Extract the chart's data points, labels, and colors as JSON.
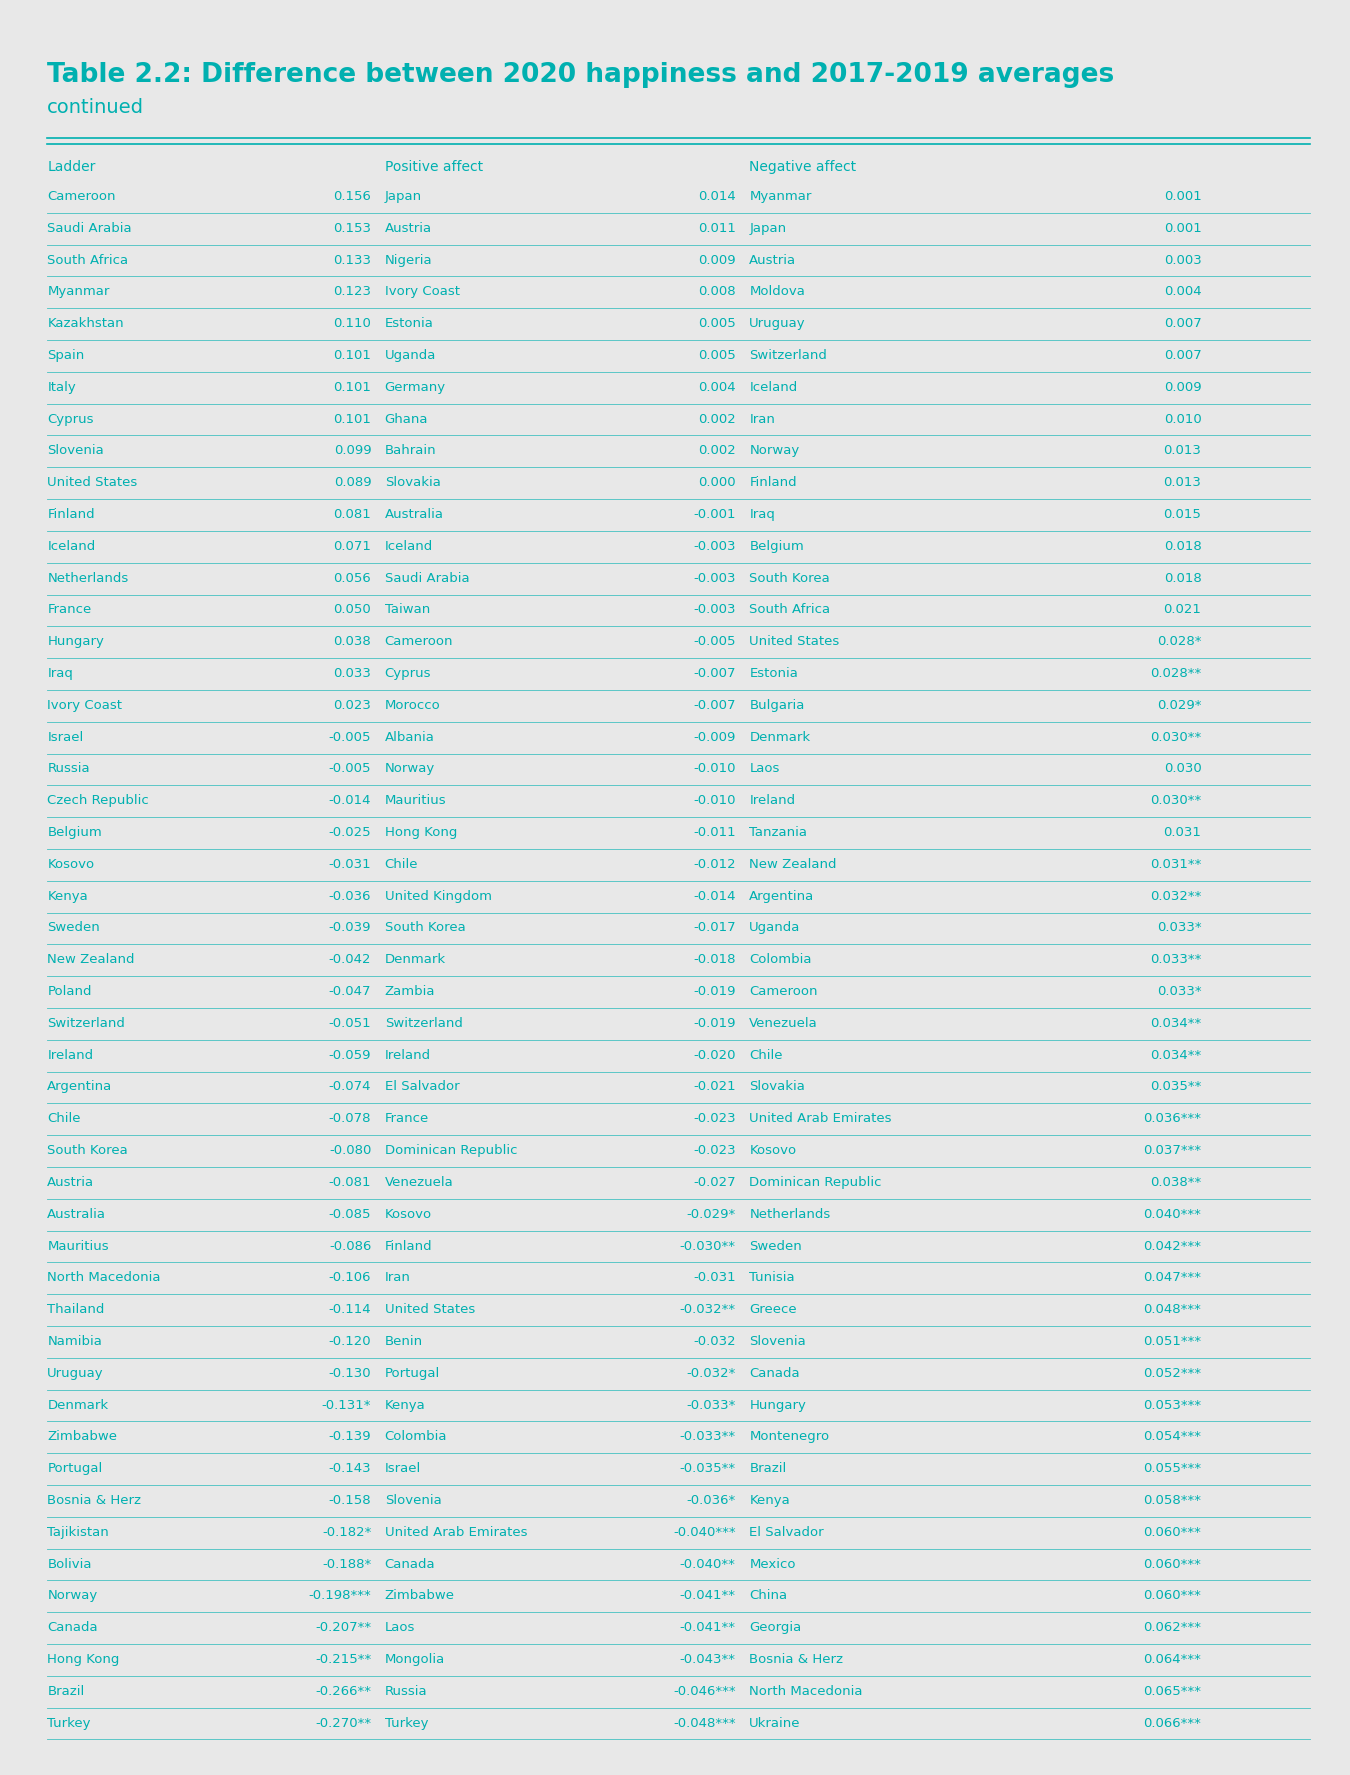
{
  "title": "Table 2.2: Difference between 2020 happiness and 2017-2019 averages",
  "subtitle": "continued",
  "bg_color": "#e8e8e8",
  "header_color": "#00b0b0",
  "text_color": "#00b0b0",
  "line_color": "#00b0b0",
  "col_headers": [
    "Ladder",
    "",
    "Positive affect",
    "",
    "Negative affect",
    ""
  ],
  "rows": [
    [
      "Cameroon",
      "0.156",
      "Japan",
      "0.014",
      "Myanmar",
      "0.001"
    ],
    [
      "Saudi Arabia",
      "0.153",
      "Austria",
      "0.011",
      "Japan",
      "0.001"
    ],
    [
      "South Africa",
      "0.133",
      "Nigeria",
      "0.009",
      "Austria",
      "0.003"
    ],
    [
      "Myanmar",
      "0.123",
      "Ivory Coast",
      "0.008",
      "Moldova",
      "0.004"
    ],
    [
      "Kazakhstan",
      "0.110",
      "Estonia",
      "0.005",
      "Uruguay",
      "0.007"
    ],
    [
      "Spain",
      "0.101",
      "Uganda",
      "0.005",
      "Switzerland",
      "0.007"
    ],
    [
      "Italy",
      "0.101",
      "Germany",
      "0.004",
      "Iceland",
      "0.009"
    ],
    [
      "Cyprus",
      "0.101",
      "Ghana",
      "0.002",
      "Iran",
      "0.010"
    ],
    [
      "Slovenia",
      "0.099",
      "Bahrain",
      "0.002",
      "Norway",
      "0.013"
    ],
    [
      "United States",
      "0.089",
      "Slovakia",
      "0.000",
      "Finland",
      "0.013"
    ],
    [
      "Finland",
      "0.081",
      "Australia",
      "-0.001",
      "Iraq",
      "0.015"
    ],
    [
      "Iceland",
      "0.071",
      "Iceland",
      "-0.003",
      "Belgium",
      "0.018"
    ],
    [
      "Netherlands",
      "0.056",
      "Saudi Arabia",
      "-0.003",
      "South Korea",
      "0.018"
    ],
    [
      "France",
      "0.050",
      "Taiwan",
      "-0.003",
      "South Africa",
      "0.021"
    ],
    [
      "Hungary",
      "0.038",
      "Cameroon",
      "-0.005",
      "United States",
      "0.028*"
    ],
    [
      "Iraq",
      "0.033",
      "Cyprus",
      "-0.007",
      "Estonia",
      "0.028**"
    ],
    [
      "Ivory Coast",
      "0.023",
      "Morocco",
      "-0.007",
      "Bulgaria",
      "0.029*"
    ],
    [
      "Israel",
      "-0.005",
      "Albania",
      "-0.009",
      "Denmark",
      "0.030**"
    ],
    [
      "Russia",
      "-0.005",
      "Norway",
      "-0.010",
      "Laos",
      "0.030"
    ],
    [
      "Czech Republic",
      "-0.014",
      "Mauritius",
      "-0.010",
      "Ireland",
      "0.030**"
    ],
    [
      "Belgium",
      "-0.025",
      "Hong Kong",
      "-0.011",
      "Tanzania",
      "0.031"
    ],
    [
      "Kosovo",
      "-0.031",
      "Chile",
      "-0.012",
      "New Zealand",
      "0.031**"
    ],
    [
      "Kenya",
      "-0.036",
      "United Kingdom",
      "-0.014",
      "Argentina",
      "0.032**"
    ],
    [
      "Sweden",
      "-0.039",
      "South Korea",
      "-0.017",
      "Uganda",
      "0.033*"
    ],
    [
      "New Zealand",
      "-0.042",
      "Denmark",
      "-0.018",
      "Colombia",
      "0.033**"
    ],
    [
      "Poland",
      "-0.047",
      "Zambia",
      "-0.019",
      "Cameroon",
      "0.033*"
    ],
    [
      "Switzerland",
      "-0.051",
      "Switzerland",
      "-0.019",
      "Venezuela",
      "0.034**"
    ],
    [
      "Ireland",
      "-0.059",
      "Ireland",
      "-0.020",
      "Chile",
      "0.034**"
    ],
    [
      "Argentina",
      "-0.074",
      "El Salvador",
      "-0.021",
      "Slovakia",
      "0.035**"
    ],
    [
      "Chile",
      "-0.078",
      "France",
      "-0.023",
      "United Arab Emirates",
      "0.036***"
    ],
    [
      "South Korea",
      "-0.080",
      "Dominican Republic",
      "-0.023",
      "Kosovo",
      "0.037***"
    ],
    [
      "Austria",
      "-0.081",
      "Venezuela",
      "-0.027",
      "Dominican Republic",
      "0.038**"
    ],
    [
      "Australia",
      "-0.085",
      "Kosovo",
      "-0.029*",
      "Netherlands",
      "0.040***"
    ],
    [
      "Mauritius",
      "-0.086",
      "Finland",
      "-0.030**",
      "Sweden",
      "0.042***"
    ],
    [
      "North Macedonia",
      "-0.106",
      "Iran",
      "-0.031",
      "Tunisia",
      "0.047***"
    ],
    [
      "Thailand",
      "-0.114",
      "United States",
      "-0.032**",
      "Greece",
      "0.048***"
    ],
    [
      "Namibia",
      "-0.120",
      "Benin",
      "-0.032",
      "Slovenia",
      "0.051***"
    ],
    [
      "Uruguay",
      "-0.130",
      "Portugal",
      "-0.032*",
      "Canada",
      "0.052***"
    ],
    [
      "Denmark",
      "-0.131*",
      "Kenya",
      "-0.033*",
      "Hungary",
      "0.053***"
    ],
    [
      "Zimbabwe",
      "-0.139",
      "Colombia",
      "-0.033**",
      "Montenegro",
      "0.054***"
    ],
    [
      "Portugal",
      "-0.143",
      "Israel",
      "-0.035**",
      "Brazil",
      "0.055***"
    ],
    [
      "Bosnia & Herz",
      "-0.158",
      "Slovenia",
      "-0.036*",
      "Kenya",
      "0.058***"
    ],
    [
      "Tajikistan",
      "-0.182*",
      "United Arab Emirates",
      "-0.040***",
      "El Salvador",
      "0.060***"
    ],
    [
      "Bolivia",
      "-0.188*",
      "Canada",
      "-0.040**",
      "Mexico",
      "0.060***"
    ],
    [
      "Norway",
      "-0.198***",
      "Zimbabwe",
      "-0.041**",
      "China",
      "0.060***"
    ],
    [
      "Canada",
      "-0.207**",
      "Laos",
      "-0.041**",
      "Georgia",
      "0.062***"
    ],
    [
      "Hong Kong",
      "-0.215**",
      "Mongolia",
      "-0.043**",
      "Bosnia & Herz",
      "0.064***"
    ],
    [
      "Brazil",
      "-0.266**",
      "Russia",
      "-0.046***",
      "North Macedonia",
      "0.065***"
    ],
    [
      "Turkey",
      "-0.270**",
      "Turkey",
      "-0.048***",
      "Ukraine",
      "0.066***"
    ]
  ]
}
